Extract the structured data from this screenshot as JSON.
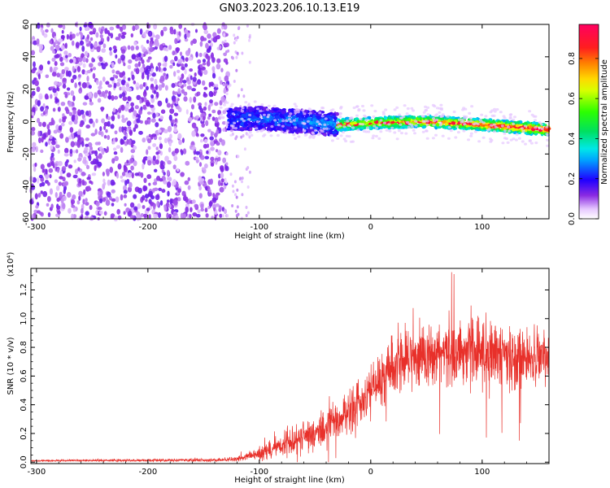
{
  "figure_title": "GN03.2023.206.10.13.E19",
  "colorbar": {
    "label": "Normalized spectral amplitude",
    "ticks": [
      "0.0",
      "0.2",
      "0.4",
      "0.6",
      "0.8"
    ],
    "tick_values": [
      0.0,
      0.2,
      0.4,
      0.6,
      0.8
    ],
    "range": [
      0,
      0.97
    ],
    "colormap": "rainbow (white-violet at 0 to magenta-red at max)"
  },
  "chart_data": [
    {
      "type": "heatmap",
      "title": "",
      "xlabel": "Height of straight line (km)",
      "ylabel": "Frequency (Hz)",
      "xlim": [
        -305,
        160
      ],
      "ylim": [
        -60,
        60
      ],
      "xticks": [
        "-300",
        "-200",
        "-100",
        "0",
        "100"
      ],
      "xtick_values": [
        -300,
        -200,
        -100,
        0,
        100
      ],
      "yticks": [
        "-60",
        "-40",
        "-20",
        "0",
        "20",
        "40",
        "60"
      ],
      "ytick_values": [
        -60,
        -40,
        -20,
        0,
        20,
        40,
        60
      ],
      "description_regions": [
        {
          "x_range": [
            -305,
            -128
          ],
          "pattern": "broadband noise",
          "amplitude": [
            0.05,
            0.15
          ]
        },
        {
          "x_range": [
            -128,
            -30
          ],
          "pattern": "signal band near 0 Hz",
          "center_freq": [
            2,
            -2
          ],
          "width_hz": 14,
          "amplitude": [
            0.15,
            0.3
          ]
        },
        {
          "x_range": [
            -30,
            160
          ],
          "pattern": "narrow signal line",
          "center_freq": [
            -1,
            -5
          ],
          "width_hz": 7,
          "amplitude": [
            0.3,
            0.97
          ]
        }
      ],
      "signal_centerline": {
        "x": [
          -135,
          -100,
          -60,
          -30,
          0,
          40,
          80,
          120,
          160
        ],
        "freq": [
          1,
          2,
          0,
          -2,
          -1,
          0,
          -1,
          -3,
          -5
        ]
      }
    },
    {
      "type": "line",
      "title": "",
      "xlabel": "Height of straight line (km)",
      "ylabel": "SNR (10 * v/v)",
      "y_multiplier": "(x10⁴)",
      "xlim": [
        -305,
        160
      ],
      "ylim": [
        -0.01,
        1.35
      ],
      "xticks": [
        "-300",
        "-200",
        "-100",
        "0",
        "100"
      ],
      "xtick_values": [
        -300,
        -200,
        -100,
        0,
        100
      ],
      "yticks": [
        "0.0",
        "0.2",
        "0.4",
        "0.6",
        "0.8",
        "1.0",
        "1.2"
      ],
      "ytick_values": [
        0.0,
        0.2,
        0.4,
        0.6,
        0.8,
        1.0,
        1.2
      ],
      "series": [
        {
          "color": "#e8302a",
          "envelope_x": [
            -305,
            -130,
            -115,
            -100,
            -80,
            -70,
            -60,
            -50,
            -40,
            -30,
            -20,
            -10,
            0,
            10,
            20,
            30,
            40,
            60,
            80,
            100,
            120,
            140,
            160
          ],
          "envelope_mean": [
            0.01,
            0.015,
            0.03,
            0.06,
            0.12,
            0.16,
            0.18,
            0.2,
            0.25,
            0.3,
            0.35,
            0.42,
            0.5,
            0.58,
            0.68,
            0.72,
            0.75,
            0.76,
            0.78,
            0.77,
            0.74,
            0.72,
            0.72
          ],
          "envelope_spread": [
            0.005,
            0.01,
            0.02,
            0.04,
            0.07,
            0.09,
            0.1,
            0.1,
            0.12,
            0.14,
            0.15,
            0.16,
            0.17,
            0.18,
            0.2,
            0.2,
            0.2,
            0.2,
            0.22,
            0.22,
            0.2,
            0.18,
            0.16
          ]
        }
      ]
    }
  ]
}
